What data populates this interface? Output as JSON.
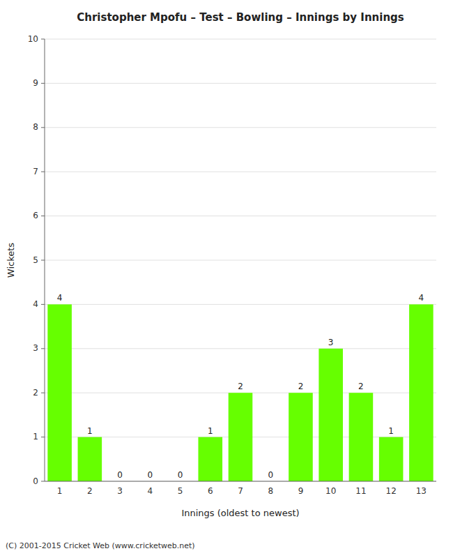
{
  "chart_data": {
    "type": "bar",
    "title": "Christopher Mpofu – Test – Bowling – Innings by Innings",
    "xlabel": "Innings (oldest to newest)",
    "ylabel": "Wickets",
    "categories": [
      "1",
      "2",
      "3",
      "4",
      "5",
      "6",
      "7",
      "8",
      "9",
      "10",
      "11",
      "12",
      "13"
    ],
    "values": [
      4,
      1,
      0,
      0,
      0,
      1,
      2,
      0,
      2,
      3,
      2,
      1,
      4
    ],
    "color": "#66ff00",
    "ylim": [
      0,
      10
    ],
    "yticks": [
      0,
      1,
      2,
      3,
      4,
      5,
      6,
      7,
      8,
      9,
      10
    ],
    "grid": true,
    "data_labels": true,
    "annotations": [
      "(C) 2001-2015 Cricket Web (www.cricketweb.net)"
    ]
  }
}
